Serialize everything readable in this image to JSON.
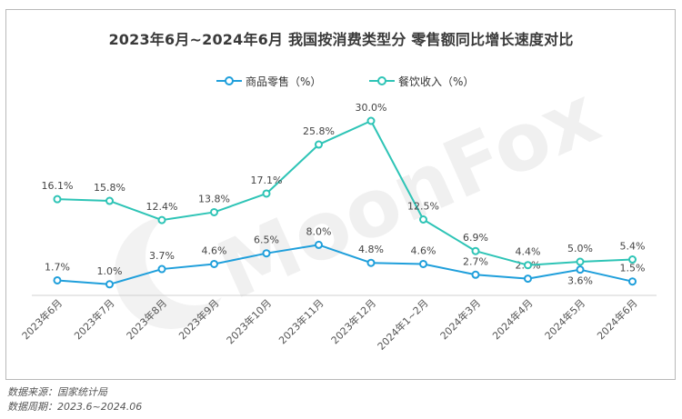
{
  "chart_data": {
    "type": "line",
    "title": "2023年6月~2024年6月 我国按消费类型分 零售额同比增长速度对比",
    "categories": [
      "2023年6月",
      "2023年7月",
      "2023年8月",
      "2023年9月",
      "2023年10月",
      "2023年11月",
      "2023年12月",
      "2024年1~2月",
      "2024年3月",
      "2024年4月",
      "2024年5月",
      "2024年6月"
    ],
    "series": [
      {
        "name": "商品零售（%）",
        "color": "#1f9fdb",
        "values": [
          1.7,
          1.0,
          3.7,
          4.6,
          6.5,
          8.0,
          4.8,
          4.6,
          2.7,
          2.0,
          3.6,
          1.5
        ],
        "labels": [
          "1.7%",
          "1.0%",
          "3.7%",
          "4.6%",
          "6.5%",
          "8.0%",
          "4.8%",
          "4.6%",
          "2.7%",
          "2.0%",
          "3.6%",
          "1.5%"
        ]
      },
      {
        "name": "餐饮收入（%）",
        "color": "#2ec4b6",
        "values": [
          16.1,
          15.8,
          12.4,
          13.8,
          17.1,
          25.8,
          30.0,
          12.5,
          6.9,
          4.4,
          5.0,
          5.4
        ],
        "labels": [
          "16.1%",
          "15.8%",
          "12.4%",
          "13.8%",
          "17.1%",
          "25.8%",
          "30.0%",
          "12.5%",
          "6.9%",
          "4.4%",
          "5.0%",
          "5.4%"
        ]
      }
    ],
    "xlabel": "",
    "ylabel": "",
    "legend_position": "top-center",
    "grid": false
  },
  "watermark": "MoonFox",
  "footer": {
    "source": "数据来源：国家统计局",
    "period": "数据周期：2023.6~2024.06"
  }
}
